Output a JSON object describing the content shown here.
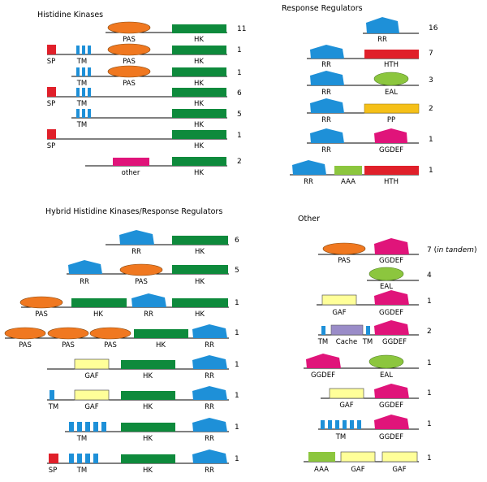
{
  "sections": {
    "hk": "Histidine Kinases",
    "rr": "Response Regulators",
    "hybrid": "Hybrid Histidine Kinases/Response Regulators",
    "other": "Other"
  },
  "labels": {
    "pas": "PAS",
    "hk": "HK",
    "sp": "SP",
    "tm": "TM",
    "rr": "RR",
    "hth": "HTH",
    "eal": "EAL",
    "pp": "PP",
    "ggdef": "GGDEF",
    "aaa": "AAA",
    "gaf": "GAF",
    "cache": "Cache",
    "other": "other"
  },
  "counts": {
    "hk": [
      "11",
      "1",
      "1",
      "6",
      "5",
      "1",
      "2"
    ],
    "rr": [
      "16",
      "7",
      "3",
      "2",
      "1",
      "1"
    ],
    "hybrid": [
      "6",
      "5",
      "1",
      "1",
      "1",
      "1",
      "1",
      "1"
    ],
    "other": [
      "7",
      "4",
      "1",
      "2",
      "1",
      "1",
      "1",
      "1"
    ]
  },
  "notes": {
    "in_tandem": "in tandem"
  },
  "colors": {
    "pas": "#f07820",
    "hk": "#0e8a3c",
    "sp": "#e0202a",
    "tm": "#1e90d8",
    "rr": "#1e90d8",
    "hth": "#e0202a",
    "eal": "#8cc63e",
    "pp": "#f5c018",
    "ggdef": "#e0147a",
    "aaa": "#8cc63e",
    "gaf": "#ffff99",
    "cache": "#9a8cc8",
    "other_domain": "#e0147a"
  }
}
